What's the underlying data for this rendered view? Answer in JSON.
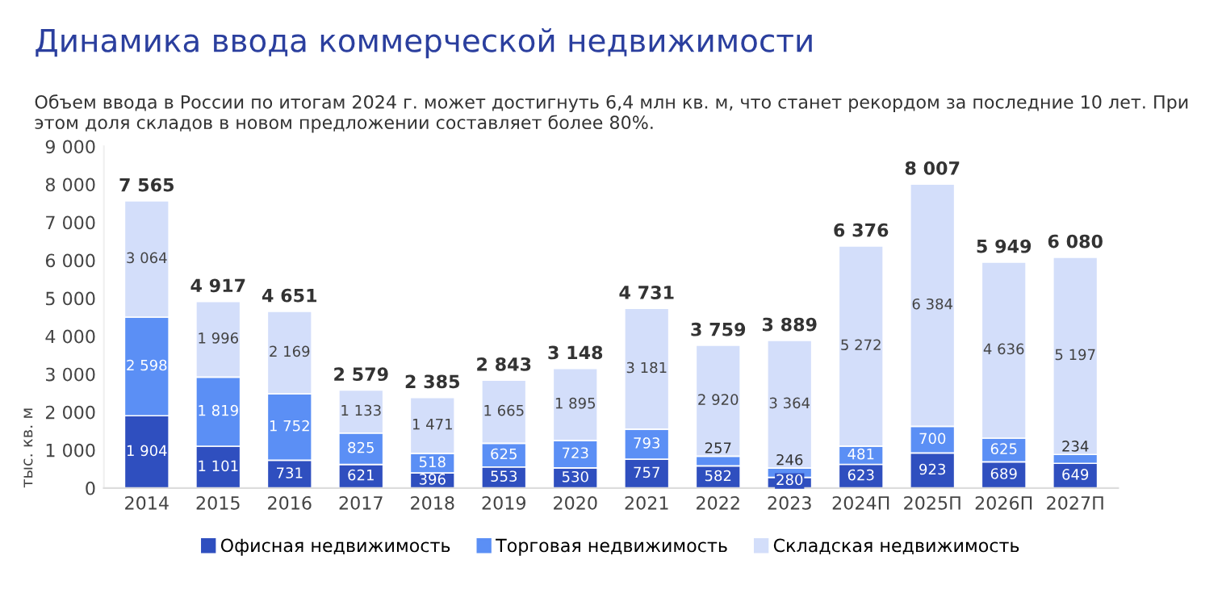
{
  "chart_data": {
    "type": "bar",
    "stacked": true,
    "title": "Динамика ввода коммерческой недвижимости",
    "subtitle": "Объем ввода в России по итогам 2024 г. может достигнуть 6,4 млн кв. м, что станет рекордом за последние 10 лет. При этом доля складов в новом предложении составляет более 80%.",
    "ylabel": "тыс. кв. м",
    "categories": [
      "2014",
      "2015",
      "2016",
      "2017",
      "2018",
      "2019",
      "2020",
      "2021",
      "2022",
      "2023",
      "2024П",
      "2025П",
      "2026П",
      "2027П"
    ],
    "series": [
      {
        "name": "Офисная недвижимость",
        "color": "#2f4fbf",
        "values": [
          1904,
          1101,
          731,
          621,
          396,
          553,
          530,
          757,
          582,
          280,
          623,
          923,
          689,
          649
        ],
        "value_labels": [
          "1 904",
          "1 101",
          "731",
          "621",
          "396",
          "553",
          "530",
          "757",
          "582",
          "280",
          "623",
          "923",
          "689",
          "649"
        ]
      },
      {
        "name": "Торговая недвижимость",
        "color": "#5b8ff5",
        "values": [
          2598,
          1819,
          1752,
          825,
          518,
          625,
          723,
          793,
          257,
          246,
          481,
          700,
          625,
          234
        ],
        "value_labels": [
          "2 598",
          "1 819",
          "1 752",
          "825",
          "518",
          "625",
          "723",
          "793",
          "257",
          "246",
          "481",
          "700",
          "625",
          "234"
        ]
      },
      {
        "name": "Складская недвижимость",
        "color": "#d3defa",
        "values": [
          3064,
          1996,
          2169,
          1133,
          1471,
          1665,
          1895,
          3181,
          2920,
          3364,
          5272,
          6384,
          4636,
          5197
        ],
        "value_labels": [
          "3 064",
          "1 996",
          "2 169",
          "1 133",
          "1 471",
          "1 665",
          "1 895",
          "3 181",
          "2 920",
          "3 364",
          "5 272",
          "6 384",
          "4 636",
          "5 197"
        ]
      }
    ],
    "totals": [
      "7 565",
      "4 917",
      "4 651",
      "2 579",
      "2 385",
      "2 843",
      "3 148",
      "4 731",
      "3 759",
      "3 889",
      "6 376",
      "8 007",
      "5 949",
      "6 080"
    ],
    "ylim": [
      0,
      9000
    ],
    "yticks": [
      0,
      {
        "value": 1000,
        "label": "1 000"
      },
      {
        "value": 2000,
        "label": "2 000"
      },
      {
        "value": 3000,
        "label": "3 000"
      },
      {
        "value": 4000,
        "label": "4 000"
      },
      {
        "value": 5000,
        "label": "5 000"
      },
      {
        "value": 6000,
        "label": "6 000"
      },
      {
        "value": 7000,
        "label": "7 000"
      },
      {
        "value": 8000,
        "label": "8 000"
      },
      {
        "value": 9000,
        "label": "9 000"
      }
    ],
    "grid": false,
    "legend": "bottom"
  }
}
